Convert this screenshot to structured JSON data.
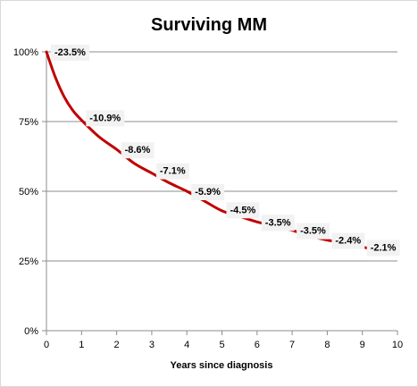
{
  "chart_data": {
    "type": "line",
    "title": "Surviving MM",
    "xlabel": "Years since diagnosis",
    "ylabel": "",
    "xlim": [
      0,
      10
    ],
    "ylim": [
      0,
      100
    ],
    "x_ticks": [
      "0",
      "1",
      "2",
      "3",
      "4",
      "5",
      "6",
      "7",
      "8",
      "9",
      "10"
    ],
    "y_ticks": [
      "0%",
      "25%",
      "50%",
      "75%",
      "100%"
    ],
    "grid": "horizontal",
    "line_color": "#c00000",
    "series": [
      {
        "x": [
          0,
          0.25,
          0.5,
          0.75,
          1,
          1.5,
          2,
          2.5,
          3,
          3.5,
          4,
          4.5,
          5,
          5.5,
          6,
          6.5,
          7,
          7.5,
          8,
          8.5,
          9,
          9.5,
          10
        ],
        "values": [
          100,
          91,
          84,
          79,
          75.5,
          69.5,
          65,
          60,
          56.5,
          53,
          50,
          46.5,
          43,
          41,
          39,
          37.5,
          36,
          34,
          32.5,
          31.5,
          30,
          28.8,
          27.5
        ]
      }
    ],
    "data_labels": [
      {
        "x": 0,
        "y": 100,
        "text": "-23.5%"
      },
      {
        "x": 1,
        "y": 76.5,
        "text": "-10.9%"
      },
      {
        "x": 2,
        "y": 65,
        "text": "-8.6%"
      },
      {
        "x": 3,
        "y": 57.5,
        "text": "-7.1%"
      },
      {
        "x": 4,
        "y": 50,
        "text": "-5.9%"
      },
      {
        "x": 5,
        "y": 43.5,
        "text": "-4.5%"
      },
      {
        "x": 6,
        "y": 39,
        "text": "-3.5%"
      },
      {
        "x": 7,
        "y": 36,
        "text": "-3.5%"
      },
      {
        "x": 8,
        "y": 32.5,
        "text": "-2.4%"
      },
      {
        "x": 9,
        "y": 30,
        "text": "-2.1%"
      }
    ]
  }
}
